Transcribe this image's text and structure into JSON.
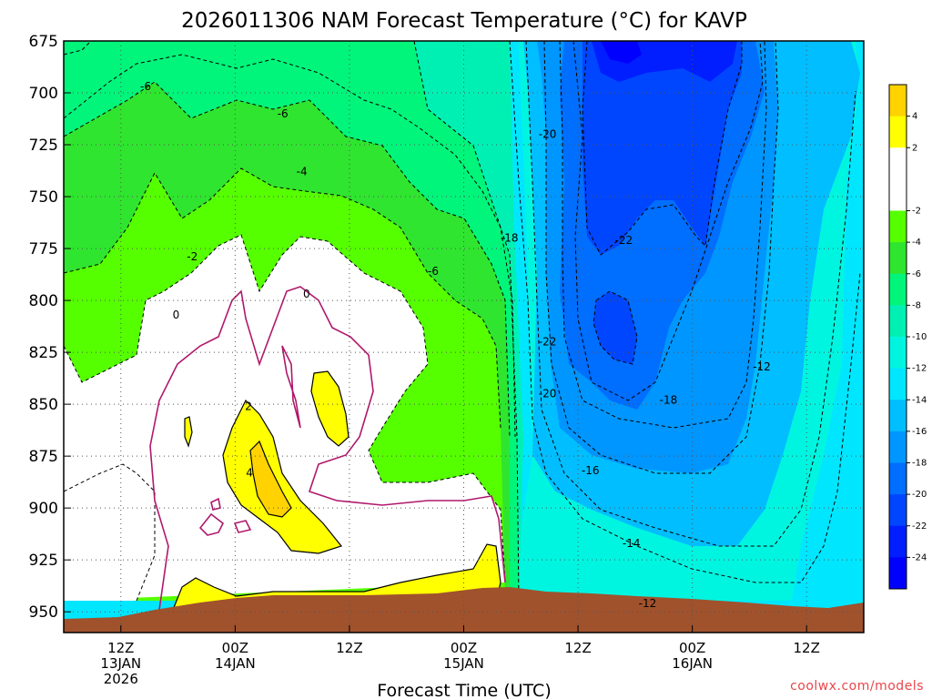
{
  "chart_data": {
    "type": "heatmap",
    "title": "2026011306 NAM Forecast Temperature (°C) for KAVP",
    "xlabel": "Forecast Time (UTC)",
    "ylabel": "",
    "y_axis_label_visible": false,
    "ylim": [
      675,
      960
    ],
    "y_ticks": [
      675,
      700,
      725,
      750,
      775,
      800,
      825,
      850,
      875,
      900,
      925,
      950
    ],
    "y_inverted": true,
    "x_ticks": [
      {
        "hours": 6,
        "lines": [
          "12Z",
          "13JAN",
          "2026"
        ]
      },
      {
        "hours": 18,
        "lines": [
          "00Z",
          "14JAN"
        ]
      },
      {
        "hours": 30,
        "lines": [
          "12Z"
        ]
      },
      {
        "hours": 42,
        "lines": [
          "00Z",
          "15JAN"
        ]
      },
      {
        "hours": 54,
        "lines": [
          "12Z"
        ]
      },
      {
        "hours": 66,
        "lines": [
          "00Z",
          "16JAN"
        ]
      },
      {
        "hours": 78,
        "lines": [
          "12Z"
        ]
      }
    ],
    "xlim_hours": [
      0,
      84
    ],
    "grid": true,
    "colorbar": {
      "position": "right",
      "ticks": [
        4,
        2,
        -2,
        -4,
        -6,
        -8,
        -10,
        -12,
        -14,
        -16,
        -18,
        -20,
        -22,
        -24
      ],
      "bins": [
        {
          "from": 4,
          "to": 6,
          "color": "#ffd200"
        },
        {
          "from": 2,
          "to": 4,
          "color": "#ffff00"
        },
        {
          "from": -2,
          "to": 2,
          "color": "#ffffff"
        },
        {
          "from": -4,
          "to": -2,
          "color": "#55ff00"
        },
        {
          "from": -6,
          "to": -4,
          "color": "#2fe52f"
        },
        {
          "from": -8,
          "to": -6,
          "color": "#00f57a"
        },
        {
          "from": -10,
          "to": -8,
          "color": "#00f0b4"
        },
        {
          "from": -12,
          "to": -10,
          "color": "#00f5e0"
        },
        {
          "from": -14,
          "to": -12,
          "color": "#00e6ff"
        },
        {
          "from": -16,
          "to": -14,
          "color": "#00beff"
        },
        {
          "from": -18,
          "to": -16,
          "color": "#0096ff"
        },
        {
          "from": -20,
          "to": -18,
          "color": "#006eff"
        },
        {
          "from": -22,
          "to": -20,
          "color": "#0046ff"
        },
        {
          "from": -24,
          "to": -22,
          "color": "#001eff"
        },
        {
          "from": -26,
          "to": -24,
          "color": "#0000ff"
        }
      ]
    },
    "contour_labels": [
      {
        "text": "-6",
        "hours": 8.6,
        "p": 697
      },
      {
        "text": "-6",
        "hours": 23,
        "p": 710
      },
      {
        "text": "-4",
        "hours": 25,
        "p": 738
      },
      {
        "text": "-2",
        "hours": 13.5,
        "p": 779
      },
      {
        "text": "0",
        "hours": 11.8,
        "p": 807
      },
      {
        "text": "0",
        "hours": 25.5,
        "p": 797
      },
      {
        "text": "2",
        "hours": 19.4,
        "p": 851
      },
      {
        "text": "4",
        "hours": 19.5,
        "p": 883
      },
      {
        "text": "-6",
        "hours": 38.8,
        "p": 786
      },
      {
        "text": "-20",
        "hours": 50.8,
        "p": 720
      },
      {
        "text": "-18",
        "hours": 46.8,
        "p": 770
      },
      {
        "text": "-22",
        "hours": 58.8,
        "p": 771
      },
      {
        "text": "-22",
        "hours": 50.8,
        "p": 820
      },
      {
        "text": "-20",
        "hours": 50.8,
        "p": 845
      },
      {
        "text": "-18",
        "hours": 63.5,
        "p": 848
      },
      {
        "text": "-16",
        "hours": 55.3,
        "p": 882
      },
      {
        "text": "-14",
        "hours": 59.6,
        "p": 917
      },
      {
        "text": "-12",
        "hours": 61.3,
        "p": 946
      },
      {
        "text": "-12",
        "hours": 73.3,
        "p": 832
      }
    ],
    "terrain": {
      "color": "#a0522d",
      "description_hidden": true
    }
  },
  "credit": "coolwx.com/models",
  "colors": {
    "terrain": "#a0522d",
    "zero_isotherm": "#b0186c"
  }
}
